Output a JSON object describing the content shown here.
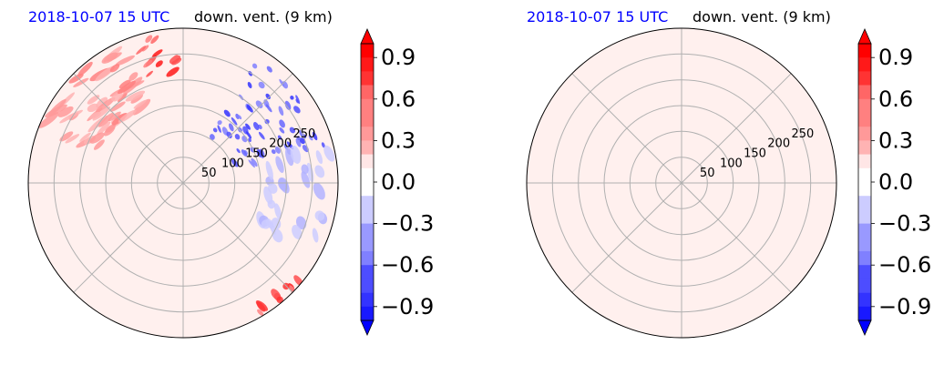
{
  "chart_data": [
    {
      "type": "heatmap",
      "projection": "polar",
      "title_date": "2018-10-07 15 UTC",
      "title_var": "down. vent. (9 km)",
      "radial_ticks": [
        50,
        100,
        150,
        200,
        250
      ],
      "radial_max": 300,
      "angular_gridlines_deg": [
        0,
        45,
        90,
        135,
        180,
        225,
        270,
        315
      ],
      "background_value": 0.05,
      "features": [
        {
          "kind": "positive_streaks",
          "region": "northwest",
          "value": 0.5
        },
        {
          "kind": "strong_positive",
          "region": "north-northwest",
          "value": 0.95
        },
        {
          "kind": "negative_band",
          "region": "northeast",
          "value": -0.8
        },
        {
          "kind": "weak_negative",
          "region": "east",
          "value": -0.3
        },
        {
          "kind": "strong_positive",
          "region": "southeast-edge",
          "value": 0.9
        }
      ],
      "colorbar": {
        "min": -1.0,
        "max": 1.0,
        "extend": "both",
        "ticks": [
          "0.9",
          "0.6",
          "0.3",
          "0.0",
          "−0.3",
          "−0.6",
          "−0.9"
        ],
        "tick_values": [
          0.9,
          0.6,
          0.3,
          0.0,
          -0.3,
          -0.6,
          -0.9
        ],
        "cmap": "bwr"
      }
    },
    {
      "type": "heatmap",
      "projection": "polar",
      "title_date": "2018-10-07 15 UTC",
      "title_var": "down. vent. (9 km)",
      "radial_ticks": [
        50,
        100,
        150,
        200,
        250
      ],
      "radial_max": 300,
      "angular_gridlines_deg": [
        0,
        45,
        90,
        135,
        180,
        225,
        270,
        315
      ],
      "background_value": 0.05,
      "features": [],
      "colorbar": {
        "min": -1.0,
        "max": 1.0,
        "extend": "both",
        "ticks": [
          "0.9",
          "0.6",
          "0.3",
          "0.0",
          "−0.3",
          "−0.6",
          "−0.9"
        ],
        "tick_values": [
          0.9,
          0.6,
          0.3,
          0.0,
          -0.3,
          -0.6,
          -0.9
        ],
        "cmap": "bwr"
      }
    }
  ]
}
